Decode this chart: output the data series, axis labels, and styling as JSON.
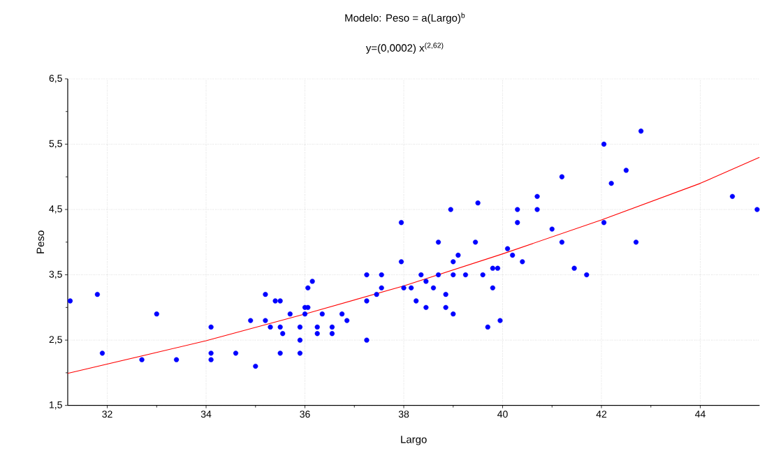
{
  "chart_data": {
    "type": "scatter",
    "title": "Modelo: Peso = a(Largo)$^{b}$",
    "subtitle": "y=(0,0002) x$^{(2,62)}$",
    "xlabel": "Largo",
    "ylabel": "Peso",
    "xlim": [
      31.2,
      45.2
    ],
    "ylim": [
      1.5,
      6.5
    ],
    "xticks": [
      32,
      34,
      36,
      38,
      40,
      42,
      44
    ],
    "yticks": [
      {
        "value": 1.5,
        "label": "1,5"
      },
      {
        "value": 2.5,
        "label": "2,5"
      },
      {
        "value": 3.5,
        "label": "3,5"
      },
      {
        "value": 4.5,
        "label": "4,5"
      },
      {
        "value": 5.5,
        "label": "5,5"
      },
      {
        "value": 6.5,
        "label": "6,5"
      }
    ],
    "grid": true,
    "series": [
      {
        "marker": "circle",
        "color": "#0000ff",
        "x": [
          31.25,
          31.8,
          31.9,
          32.7,
          33.0,
          33.4,
          34.1,
          34.1,
          34.1,
          34.6,
          35.0,
          34.9,
          35.2,
          35.2,
          35.3,
          35.4,
          35.5,
          35.5,
          35.55,
          35.5,
          35.7,
          35.9,
          35.9,
          35.9,
          36.0,
          36.06,
          36.0,
          36.06,
          36.15,
          36.25,
          36.25,
          36.35,
          36.55,
          36.55,
          36.75,
          36.85,
          37.25,
          37.25,
          37.25,
          37.55,
          37.55,
          37.45,
          37.95,
          37.95,
          38.0,
          38.15,
          38.35,
          38.25,
          38.45,
          38.45,
          38.6,
          38.7,
          38.7,
          38.85,
          38.85,
          38.95,
          39.0,
          39.1,
          39.0,
          39.0,
          39.25,
          39.5,
          39.45,
          39.6,
          39.7,
          39.8,
          39.8,
          39.9,
          39.95,
          40.1,
          40.2,
          40.3,
          40.3,
          40.4,
          40.7,
          40.7,
          41.0,
          41.2,
          41.2,
          41.45,
          41.7,
          42.05,
          42.05,
          42.2,
          42.5,
          42.8,
          42.7,
          44.65,
          45.15
        ],
        "values": [
          3.1,
          3.2,
          2.3,
          2.2,
          2.9,
          2.2,
          2.7,
          2.3,
          2.2,
          2.3,
          2.1,
          2.8,
          3.2,
          2.8,
          2.7,
          3.1,
          3.1,
          2.7,
          2.6,
          2.3,
          2.9,
          2.7,
          2.5,
          2.3,
          3.0,
          3.0,
          2.9,
          3.3,
          3.4,
          2.7,
          2.6,
          2.9,
          2.7,
          2.6,
          2.9,
          2.8,
          3.5,
          3.1,
          2.5,
          3.5,
          3.3,
          3.2,
          4.3,
          3.7,
          3.3,
          3.3,
          3.5,
          3.1,
          3.4,
          3.0,
          3.3,
          4.0,
          3.5,
          3.2,
          3.0,
          4.5,
          3.7,
          3.8,
          3.5,
          2.9,
          3.5,
          4.6,
          4.0,
          3.5,
          2.7,
          3.3,
          3.6,
          3.6,
          2.8,
          3.9,
          3.8,
          4.5,
          4.3,
          3.7,
          4.7,
          4.5,
          4.2,
          4.0,
          5.0,
          3.6,
          3.5,
          5.5,
          4.3,
          4.9,
          5.1,
          5.7,
          4.0,
          4.7,
          4.5
        ]
      },
      {
        "type": "line",
        "color": "#ff0000",
        "marker": "none",
        "x": [
          31.2,
          34,
          36,
          38,
          40,
          42,
          44,
          45.2
        ],
        "values": [
          1.99,
          2.49,
          2.9,
          3.33,
          3.82,
          4.34,
          4.9,
          5.3
        ]
      }
    ]
  }
}
